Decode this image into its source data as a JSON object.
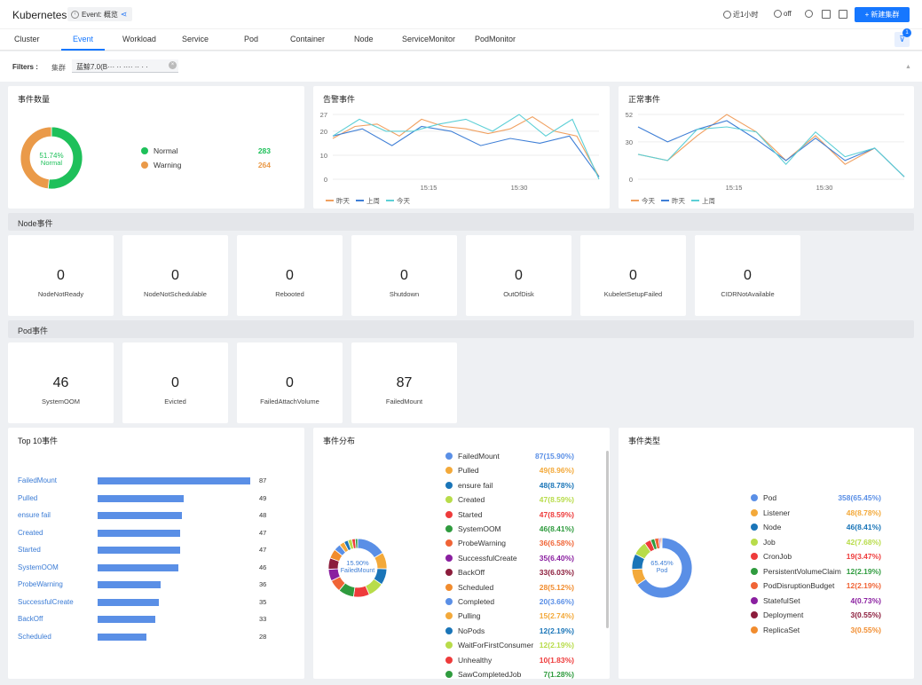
{
  "header": {
    "title": "Kubernetes",
    "event_chip": "Event: 概览",
    "time_range": "近1小时",
    "refresh": "off",
    "new_button": "新建集群",
    "filter_count": "1"
  },
  "tabs": [
    "Cluster",
    "Event",
    "Workload",
    "Service",
    "Pod",
    "Container",
    "Node",
    "ServiceMonitor",
    "PodMonitor"
  ],
  "active_tab": "Event",
  "filters": {
    "label": "Filters :",
    "cluster_label": "集群",
    "cluster_value": "蓝鲸7.0(B··· ·· ···· ·· · ·"
  },
  "event_count": {
    "title": "事件数量",
    "center_pct": "51.74%",
    "center_label": "Normal",
    "items": [
      {
        "name": "Normal",
        "value": "283",
        "color": "#1ec05a"
      },
      {
        "name": "Warning",
        "value": "264",
        "color": "#ea9a49"
      }
    ]
  },
  "alert_events": {
    "title": "告警事件",
    "y_ticks": [
      "27",
      "20",
      "10",
      "0"
    ],
    "x_ticks": [
      "15:15",
      "15:30"
    ],
    "legend": [
      "昨天",
      "上周",
      "今天"
    ],
    "colors": [
      "#f0a060",
      "#3f7fd6",
      "#5ccfd6"
    ],
    "series": [
      [
        17,
        22,
        23,
        18,
        25,
        22,
        21,
        19,
        21,
        26,
        20,
        18,
        1
      ],
      [
        18,
        21,
        14,
        22,
        20,
        14,
        17,
        15,
        18,
        1
      ],
      [
        18,
        25,
        20,
        20,
        23,
        25,
        20,
        27,
        18,
        25,
        0
      ]
    ]
  },
  "normal_events": {
    "title": "正常事件",
    "y_ticks": [
      "52",
      "30",
      "0"
    ],
    "x_ticks": [
      "15:15",
      "15:30"
    ],
    "legend": [
      "今天",
      "昨天",
      "上周"
    ],
    "colors": [
      "#f0a060",
      "#3f7fd6",
      "#5ccfd6"
    ],
    "series": [
      [
        20,
        15,
        35,
        52,
        38,
        15,
        35,
        12,
        25,
        2
      ],
      [
        42,
        30,
        40,
        47,
        32,
        15,
        33,
        15,
        25,
        2
      ],
      [
        20,
        15,
        40,
        42,
        38,
        12,
        38,
        18,
        25,
        2
      ]
    ]
  },
  "node_section": "Node事件",
  "node_stats": [
    {
      "value": "0",
      "label": "NodeNotReady"
    },
    {
      "value": "0",
      "label": "NodeNotSchedulable"
    },
    {
      "value": "0",
      "label": "Rebooted"
    },
    {
      "value": "0",
      "label": "Shutdown"
    },
    {
      "value": "0",
      "label": "OutOfDisk"
    },
    {
      "value": "0",
      "label": "KubeletSetupFailed"
    },
    {
      "value": "0",
      "label": "CIDRNotAvailable"
    }
  ],
  "pod_section": "Pod事件",
  "pod_stats": [
    {
      "value": "46",
      "label": "SystemOOM"
    },
    {
      "value": "0",
      "label": "Evicted"
    },
    {
      "value": "0",
      "label": "FailedAttachVolume"
    },
    {
      "value": "87",
      "label": "FailedMount"
    }
  ],
  "top10": {
    "title": "Top 10事件",
    "max": 87,
    "items": [
      {
        "name": "FailedMount",
        "value": 87
      },
      {
        "name": "Pulled",
        "value": 49
      },
      {
        "name": "ensure fail",
        "value": 48
      },
      {
        "name": "Created",
        "value": 47
      },
      {
        "name": "Started",
        "value": 47
      },
      {
        "name": "SystemOOM",
        "value": 46
      },
      {
        "name": "ProbeWarning",
        "value": 36
      },
      {
        "name": "SuccessfulCreate",
        "value": 35
      },
      {
        "name": "BackOff",
        "value": 33
      },
      {
        "name": "Scheduled",
        "value": 28
      }
    ]
  },
  "distribution": {
    "title": "事件分布",
    "center_pct": "15.90%",
    "center_label": "FailedMount",
    "items": [
      {
        "name": "FailedMount",
        "value": "87(15.90%)",
        "pct": 15.9,
        "color": "#5a8fe6"
      },
      {
        "name": "Pulled",
        "value": "49(8.96%)",
        "pct": 8.96,
        "color": "#f3a93a"
      },
      {
        "name": "ensure fail",
        "value": "48(8.78%)",
        "pct": 8.78,
        "color": "#1a75b8"
      },
      {
        "name": "Created",
        "value": "47(8.59%)",
        "pct": 8.59,
        "color": "#b8dc4a"
      },
      {
        "name": "Started",
        "value": "47(8.59%)",
        "pct": 8.59,
        "color": "#ee3b3b"
      },
      {
        "name": "SystemOOM",
        "value": "46(8.41%)",
        "pct": 8.41,
        "color": "#2f9b3e"
      },
      {
        "name": "ProbeWarning",
        "value": "36(6.58%)",
        "pct": 6.58,
        "color": "#f06436"
      },
      {
        "name": "SuccessfulCreate",
        "value": "35(6.40%)",
        "pct": 6.4,
        "color": "#8a1fa0"
      },
      {
        "name": "BackOff",
        "value": "33(6.03%)",
        "pct": 6.03,
        "color": "#8c1d3c"
      },
      {
        "name": "Scheduled",
        "value": "28(5.12%)",
        "pct": 5.12,
        "color": "#f18c2e"
      },
      {
        "name": "Completed",
        "value": "20(3.66%)",
        "pct": 3.66,
        "color": "#5a8fe6"
      },
      {
        "name": "Pulling",
        "value": "15(2.74%)",
        "pct": 2.74,
        "color": "#f3a93a"
      },
      {
        "name": "NoPods",
        "value": "12(2.19%)",
        "pct": 2.19,
        "color": "#1a75b8"
      },
      {
        "name": "WaitForFirstConsumer",
        "value": "12(2.19%)",
        "pct": 2.19,
        "color": "#b8dc4a"
      },
      {
        "name": "Unhealthy",
        "value": "10(1.83%)",
        "pct": 1.83,
        "color": "#ee3b3b"
      },
      {
        "name": "SawCompletedJob",
        "value": "7(1.28%)",
        "pct": 1.28,
        "color": "#2f9b3e"
      }
    ]
  },
  "event_type": {
    "title": "事件类型",
    "center_pct": "65.45%",
    "center_label": "Pod",
    "items": [
      {
        "name": "Pod",
        "value": "358(65.45%)",
        "pct": 65.45,
        "color": "#5a8fe6"
      },
      {
        "name": "Listener",
        "value": "48(8.78%)",
        "pct": 8.78,
        "color": "#f3a93a"
      },
      {
        "name": "Node",
        "value": "46(8.41%)",
        "pct": 8.41,
        "color": "#1a75b8"
      },
      {
        "name": "Job",
        "value": "42(7.68%)",
        "pct": 7.68,
        "color": "#b8dc4a"
      },
      {
        "name": "CronJob",
        "value": "19(3.47%)",
        "pct": 3.47,
        "color": "#ee3b3b"
      },
      {
        "name": "PersistentVolumeClaim",
        "value": "12(2.19%)",
        "pct": 2.19,
        "color": "#2f9b3e"
      },
      {
        "name": "PodDisruptionBudget",
        "value": "12(2.19%)",
        "pct": 2.19,
        "color": "#f06436"
      },
      {
        "name": "StatefulSet",
        "value": "4(0.73%)",
        "pct": 0.73,
        "color": "#8a1fa0"
      },
      {
        "name": "Deployment",
        "value": "3(0.55%)",
        "pct": 0.55,
        "color": "#8c1d3c"
      },
      {
        "name": "ReplicaSet",
        "value": "3(0.55%)",
        "pct": 0.55,
        "color": "#f18c2e"
      }
    ]
  }
}
